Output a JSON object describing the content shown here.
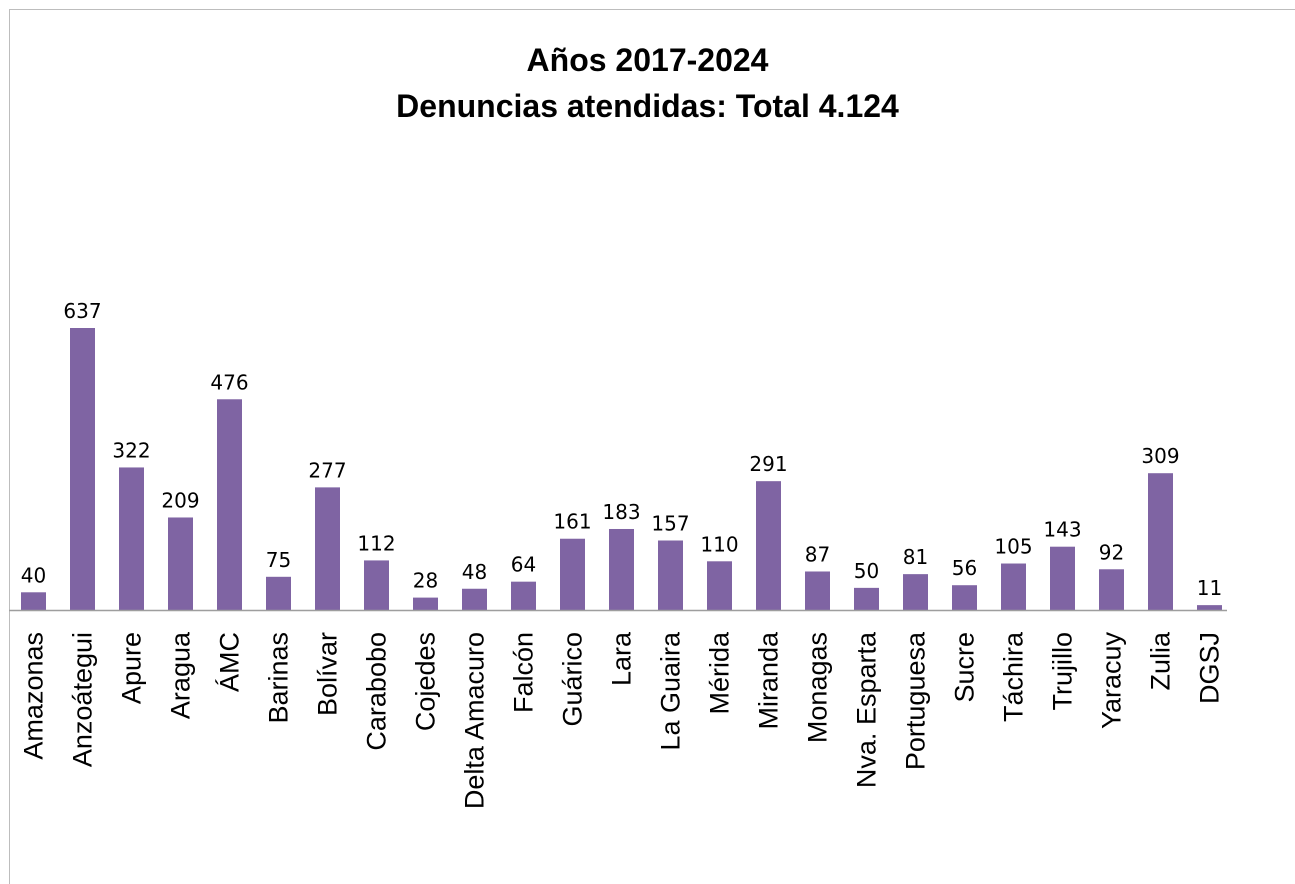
{
  "chart_data": {
    "type": "bar",
    "title": "Años 2017-2024",
    "subtitle": "Denuncias atendidas: Total 4.124",
    "categories": [
      "Amazonas",
      "Anzoátegui",
      "Apure",
      "Aragua",
      "ÁMC",
      "Barinas",
      "Bolívar",
      "Carabobo",
      "Cojedes",
      "Delta Amacuro",
      "Falcón",
      "Guárico",
      "Lara",
      "La Guaira",
      "Mérida",
      "Miranda",
      "Monagas",
      "Nva. Esparta",
      "Portuguesa",
      "Sucre",
      "Táchira",
      "Trujillo",
      "Yaracuy",
      "Zulia",
      "DGSJ"
    ],
    "values": [
      40,
      637,
      322,
      209,
      476,
      75,
      277,
      112,
      28,
      48,
      64,
      161,
      183,
      157,
      110,
      291,
      87,
      50,
      81,
      56,
      105,
      143,
      92,
      309,
      11
    ],
    "data_labels": true,
    "bar_color": "#7f64a3",
    "xlabel": "",
    "ylabel": "",
    "ylim": [
      0,
      637
    ],
    "grid": false,
    "legend": false
  }
}
